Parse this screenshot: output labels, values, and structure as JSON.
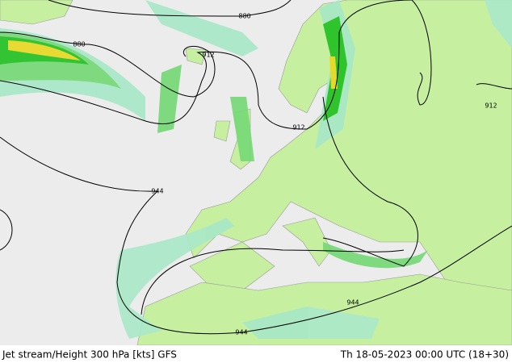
{
  "contours": [
    {
      "label": 880
    },
    {
      "label": 880
    },
    {
      "label": 912
    },
    {
      "label": 912
    },
    {
      "label": 912
    },
    {
      "label": 944
    },
    {
      "label": 944
    },
    {
      "label": 944
    }
  ],
  "footer": {
    "title": "Jet stream/Height 300 hPa [kts] GFS",
    "time": "Th 18-05-2023 00:00 UTC (18+30)"
  }
}
